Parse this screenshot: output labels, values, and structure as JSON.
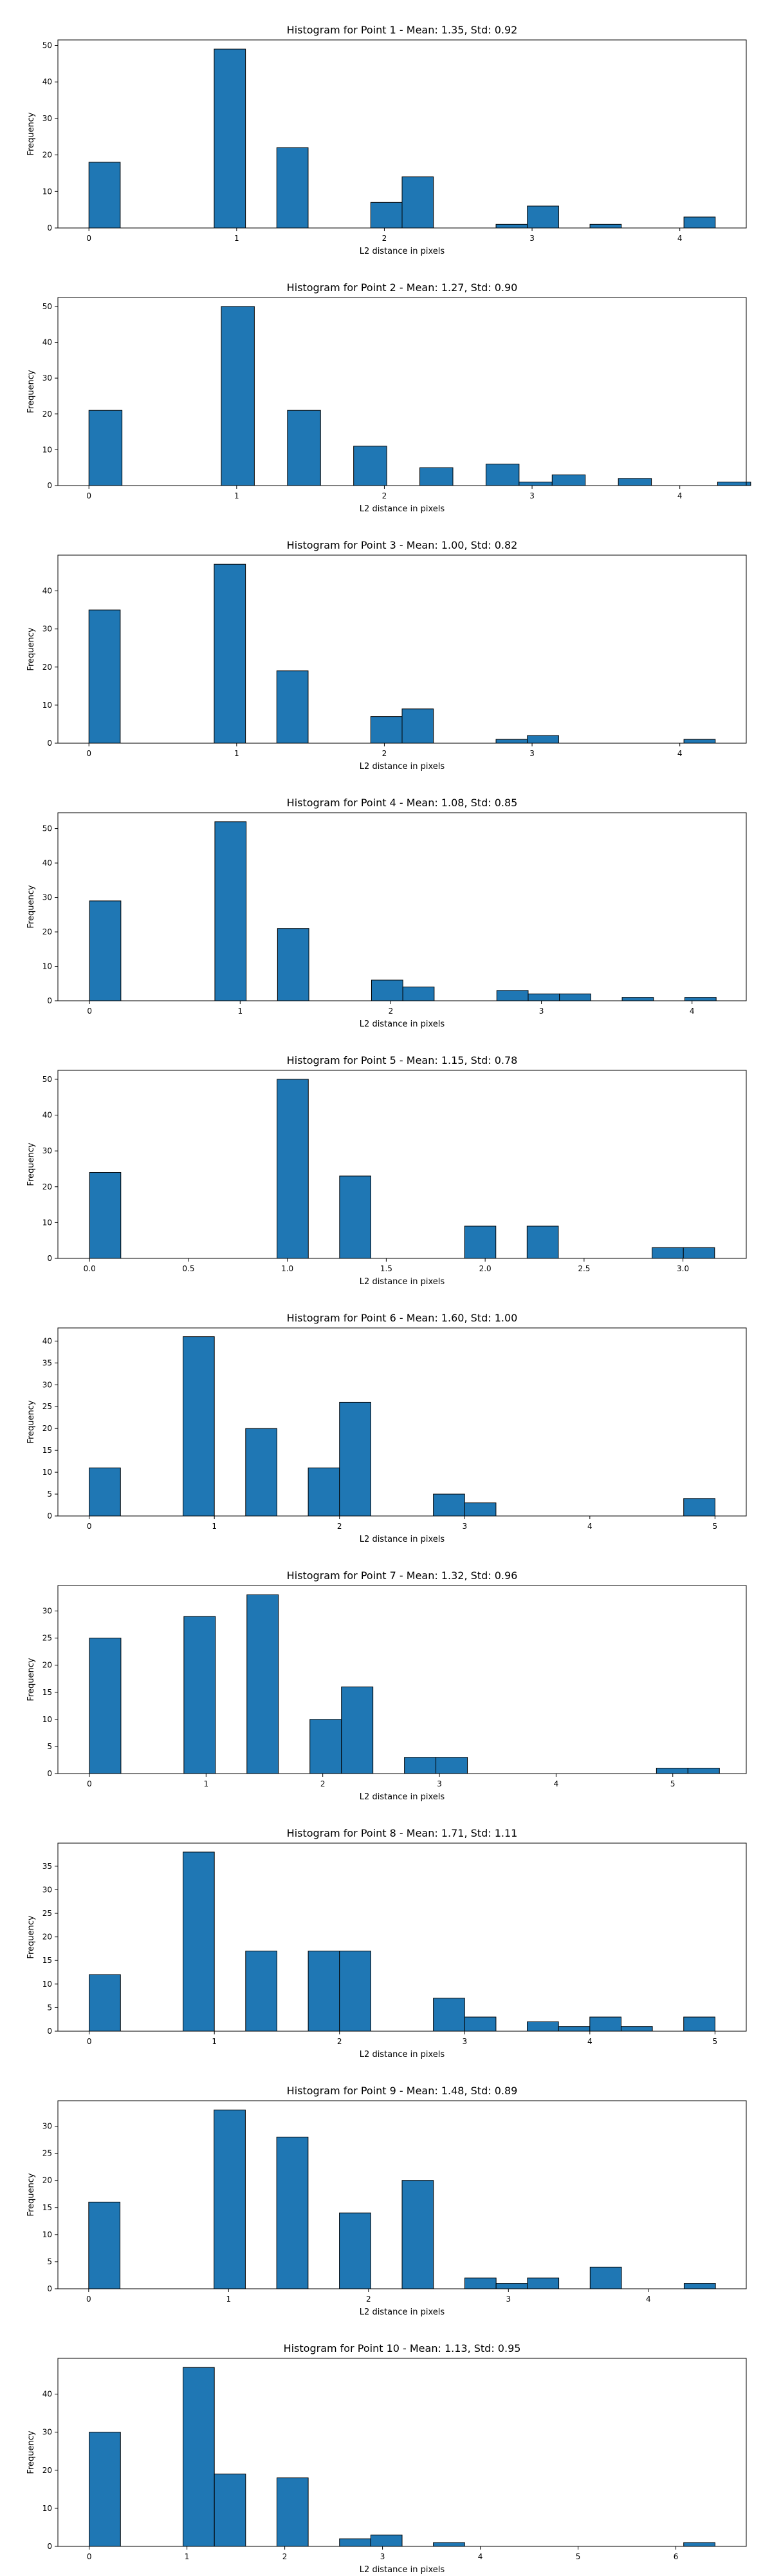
{
  "chart_data": [
    {
      "type": "bar",
      "title": "Histogram for Point 1 - Mean: 1.35, Std: 0.92",
      "xlabel": "L2 distance in pixels",
      "ylabel": "Frequency",
      "xlim": [
        -0.21,
        4.45
      ],
      "ylim": [
        0,
        51.5
      ],
      "xticks": [
        0,
        1,
        2,
        3,
        4
      ],
      "xtick_labels": [
        "0",
        "1",
        "2",
        "3",
        "4"
      ],
      "yticks": [
        0,
        10,
        20,
        30,
        40,
        50
      ],
      "bins": [
        {
          "x0": 0.0,
          "x1": 0.212,
          "value": 18
        },
        {
          "x0": 0.848,
          "x1": 1.06,
          "value": 49
        },
        {
          "x0": 1.272,
          "x1": 1.484,
          "value": 22
        },
        {
          "x0": 1.908,
          "x1": 2.12,
          "value": 7
        },
        {
          "x0": 2.12,
          "x1": 2.332,
          "value": 14
        },
        {
          "x0": 2.756,
          "x1": 2.968,
          "value": 1
        },
        {
          "x0": 2.968,
          "x1": 3.18,
          "value": 6
        },
        {
          "x0": 3.392,
          "x1": 3.604,
          "value": 1
        },
        {
          "x0": 4.028,
          "x1": 4.24,
          "value": 3
        }
      ]
    },
    {
      "type": "bar",
      "title": "Histogram for Point 2 - Mean: 1.27, Std: 0.90",
      "xlabel": "L2 distance in pixels",
      "ylabel": "Frequency",
      "xlim": [
        -0.21,
        4.45
      ],
      "ylim": [
        0,
        52.5
      ],
      "xticks": [
        0,
        1,
        2,
        3,
        4
      ],
      "xtick_labels": [
        "0",
        "1",
        "2",
        "3",
        "4"
      ],
      "yticks": [
        0,
        10,
        20,
        30,
        40,
        50
      ],
      "bins": [
        {
          "x0": 0.0,
          "x1": 0.224,
          "value": 21
        },
        {
          "x0": 0.896,
          "x1": 1.12,
          "value": 50
        },
        {
          "x0": 1.344,
          "x1": 1.568,
          "value": 21
        },
        {
          "x0": 1.792,
          "x1": 2.016,
          "value": 11
        },
        {
          "x0": 2.24,
          "x1": 2.464,
          "value": 5
        },
        {
          "x0": 2.688,
          "x1": 2.912,
          "value": 6
        },
        {
          "x0": 2.912,
          "x1": 3.136,
          "value": 1
        },
        {
          "x0": 3.136,
          "x1": 3.36,
          "value": 3
        },
        {
          "x0": 3.584,
          "x1": 3.808,
          "value": 2
        },
        {
          "x0": 4.256,
          "x1": 4.48,
          "value": 1
        }
      ]
    },
    {
      "type": "bar",
      "title": "Histogram for Point 3 - Mean: 1.00, Std: 0.82",
      "xlabel": "L2 distance in pixels",
      "ylabel": "Frequency",
      "xlim": [
        -0.21,
        4.45
      ],
      "ylim": [
        0,
        49.4
      ],
      "xticks": [
        0,
        1,
        2,
        3,
        4
      ],
      "xtick_labels": [
        "0",
        "1",
        "2",
        "3",
        "4"
      ],
      "yticks": [
        0,
        10,
        20,
        30,
        40
      ],
      "bins": [
        {
          "x0": 0.0,
          "x1": 0.212,
          "value": 35
        },
        {
          "x0": 0.848,
          "x1": 1.06,
          "value": 47
        },
        {
          "x0": 1.272,
          "x1": 1.484,
          "value": 19
        },
        {
          "x0": 1.908,
          "x1": 2.12,
          "value": 7
        },
        {
          "x0": 2.12,
          "x1": 2.332,
          "value": 9
        },
        {
          "x0": 2.756,
          "x1": 2.968,
          "value": 1
        },
        {
          "x0": 2.968,
          "x1": 3.18,
          "value": 2
        },
        {
          "x0": 4.028,
          "x1": 4.24,
          "value": 1
        }
      ]
    },
    {
      "type": "bar",
      "title": "Histogram for Point 4 - Mean: 1.08, Std: 0.85",
      "xlabel": "L2 distance in pixels",
      "ylabel": "Frequency",
      "xlim": [
        -0.21,
        4.36
      ],
      "ylim": [
        0,
        54.6
      ],
      "xticks": [
        0,
        1,
        2,
        3,
        4
      ],
      "xtick_labels": [
        "0",
        "1",
        "2",
        "3",
        "4"
      ],
      "yticks": [
        0,
        10,
        20,
        30,
        40,
        50
      ],
      "bins": [
        {
          "x0": 0.0,
          "x1": 0.208,
          "value": 29
        },
        {
          "x0": 0.832,
          "x1": 1.04,
          "value": 52
        },
        {
          "x0": 1.248,
          "x1": 1.456,
          "value": 21
        },
        {
          "x0": 1.872,
          "x1": 2.08,
          "value": 6
        },
        {
          "x0": 2.08,
          "x1": 2.288,
          "value": 4
        },
        {
          "x0": 2.704,
          "x1": 2.912,
          "value": 3
        },
        {
          "x0": 2.912,
          "x1": 3.12,
          "value": 2
        },
        {
          "x0": 3.12,
          "x1": 3.328,
          "value": 2
        },
        {
          "x0": 3.536,
          "x1": 3.744,
          "value": 1
        },
        {
          "x0": 3.952,
          "x1": 4.16,
          "value": 1
        }
      ]
    },
    {
      "type": "bar",
      "title": "Histogram for Point 5 - Mean: 1.15, Std: 0.78",
      "xlabel": "L2 distance in pixels",
      "ylabel": "Frequency",
      "xlim": [
        -0.16,
        3.32
      ],
      "ylim": [
        0,
        52.5
      ],
      "xticks": [
        0,
        0.5,
        1,
        1.5,
        2,
        2.5,
        3
      ],
      "xtick_labels": [
        "0.0",
        "0.5",
        "1.0",
        "1.5",
        "2.0",
        "2.5",
        "3.0"
      ],
      "yticks": [
        0,
        10,
        20,
        30,
        40,
        50
      ],
      "bins": [
        {
          "x0": 0.0,
          "x1": 0.158,
          "value": 24
        },
        {
          "x0": 0.948,
          "x1": 1.106,
          "value": 50
        },
        {
          "x0": 1.264,
          "x1": 1.422,
          "value": 23
        },
        {
          "x0": 1.896,
          "x1": 2.054,
          "value": 9
        },
        {
          "x0": 2.212,
          "x1": 2.37,
          "value": 9
        },
        {
          "x0": 2.844,
          "x1": 3.002,
          "value": 3
        },
        {
          "x0": 3.002,
          "x1": 3.16,
          "value": 3
        }
      ]
    },
    {
      "type": "bar",
      "title": "Histogram for Point 6 - Mean: 1.60, Std: 1.00",
      "xlabel": "L2 distance in pixels",
      "ylabel": "Frequency",
      "xlim": [
        -0.25,
        5.25
      ],
      "ylim": [
        0,
        43.0
      ],
      "xticks": [
        0,
        1,
        2,
        3,
        4,
        5
      ],
      "xtick_labels": [
        "0",
        "1",
        "2",
        "3",
        "4",
        "5"
      ],
      "yticks": [
        0,
        5,
        10,
        15,
        20,
        25,
        30,
        35,
        40
      ],
      "bins": [
        {
          "x0": 0.0,
          "x1": 0.25,
          "value": 11
        },
        {
          "x0": 0.75,
          "x1": 1.0,
          "value": 41
        },
        {
          "x0": 1.25,
          "x1": 1.5,
          "value": 20
        },
        {
          "x0": 1.75,
          "x1": 2.0,
          "value": 11
        },
        {
          "x0": 2.0,
          "x1": 2.25,
          "value": 26
        },
        {
          "x0": 2.75,
          "x1": 3.0,
          "value": 5
        },
        {
          "x0": 3.0,
          "x1": 3.25,
          "value": 3
        },
        {
          "x0": 4.75,
          "x1": 5.0,
          "value": 4
        }
      ]
    },
    {
      "type": "bar",
      "title": "Histogram for Point 7 - Mean: 1.32, Std: 0.96",
      "xlabel": "L2 distance in pixels",
      "ylabel": "Frequency",
      "xlim": [
        -0.27,
        5.63
      ],
      "ylim": [
        0,
        34.7
      ],
      "xticks": [
        0,
        1,
        2,
        3,
        4,
        5
      ],
      "xtick_labels": [
        "0",
        "1",
        "2",
        "3",
        "4",
        "5"
      ],
      "yticks": [
        0,
        5,
        10,
        15,
        20,
        25,
        30
      ],
      "bins": [
        {
          "x0": 0.0,
          "x1": 0.27,
          "value": 25
        },
        {
          "x0": 0.81,
          "x1": 1.08,
          "value": 29
        },
        {
          "x0": 1.35,
          "x1": 1.62,
          "value": 33
        },
        {
          "x0": 1.89,
          "x1": 2.16,
          "value": 10
        },
        {
          "x0": 2.16,
          "x1": 2.43,
          "value": 16
        },
        {
          "x0": 2.7,
          "x1": 2.97,
          "value": 3
        },
        {
          "x0": 2.97,
          "x1": 3.24,
          "value": 3
        },
        {
          "x0": 4.86,
          "x1": 5.13,
          "value": 1
        },
        {
          "x0": 5.13,
          "x1": 5.4,
          "value": 1
        }
      ]
    },
    {
      "type": "bar",
      "title": "Histogram for Point 8 - Mean: 1.71, Std: 1.11",
      "xlabel": "L2 distance in pixels",
      "ylabel": "Frequency",
      "xlim": [
        -0.25,
        5.25
      ],
      "ylim": [
        0,
        39.9
      ],
      "xticks": [
        0,
        1,
        2,
        3,
        4,
        5
      ],
      "xtick_labels": [
        "0",
        "1",
        "2",
        "3",
        "4",
        "5"
      ],
      "yticks": [
        0,
        5,
        10,
        15,
        20,
        25,
        30,
        35
      ],
      "bins": [
        {
          "x0": 0.0,
          "x1": 0.25,
          "value": 12
        },
        {
          "x0": 0.75,
          "x1": 1.0,
          "value": 38
        },
        {
          "x0": 1.25,
          "x1": 1.5,
          "value": 17
        },
        {
          "x0": 1.75,
          "x1": 2.0,
          "value": 17
        },
        {
          "x0": 2.0,
          "x1": 2.25,
          "value": 17
        },
        {
          "x0": 2.75,
          "x1": 3.0,
          "value": 7
        },
        {
          "x0": 3.0,
          "x1": 3.25,
          "value": 3
        },
        {
          "x0": 3.5,
          "x1": 3.75,
          "value": 2
        },
        {
          "x0": 3.75,
          "x1": 4.0,
          "value": 1
        },
        {
          "x0": 4.0,
          "x1": 4.25,
          "value": 3
        },
        {
          "x0": 4.25,
          "x1": 4.5,
          "value": 1
        },
        {
          "x0": 4.75,
          "x1": 5.0,
          "value": 3
        }
      ]
    },
    {
      "type": "bar",
      "title": "Histogram for Point 9 - Mean: 1.48, Std: 0.89",
      "xlabel": "L2 distance in pixels",
      "ylabel": "Frequency",
      "xlim": [
        -0.22,
        4.7
      ],
      "ylim": [
        0,
        34.7
      ],
      "xticks": [
        0,
        1,
        2,
        3,
        4
      ],
      "xtick_labels": [
        "0",
        "1",
        "2",
        "3",
        "4"
      ],
      "yticks": [
        0,
        5,
        10,
        15,
        20,
        25,
        30
      ],
      "bins": [
        {
          "x0": 0.0,
          "x1": 0.224,
          "value": 16
        },
        {
          "x0": 0.896,
          "x1": 1.12,
          "value": 33
        },
        {
          "x0": 1.344,
          "x1": 1.568,
          "value": 28
        },
        {
          "x0": 1.792,
          "x1": 2.016,
          "value": 14
        },
        {
          "x0": 2.24,
          "x1": 2.464,
          "value": 20
        },
        {
          "x0": 2.688,
          "x1": 2.912,
          "value": 2
        },
        {
          "x0": 2.912,
          "x1": 3.136,
          "value": 1
        },
        {
          "x0": 3.136,
          "x1": 3.36,
          "value": 2
        },
        {
          "x0": 3.584,
          "x1": 3.808,
          "value": 4
        },
        {
          "x0": 4.256,
          "x1": 4.48,
          "value": 1
        }
      ]
    },
    {
      "type": "bar",
      "title": "Histogram for Point 10 - Mean: 1.13, Std: 0.95",
      "xlabel": "L2 distance in pixels",
      "ylabel": "Frequency",
      "xlim": [
        -0.32,
        6.72
      ],
      "ylim": [
        0,
        49.4
      ],
      "xticks": [
        0,
        1,
        2,
        3,
        4,
        5,
        6
      ],
      "xtick_labels": [
        "0",
        "1",
        "2",
        "3",
        "4",
        "5",
        "6"
      ],
      "yticks": [
        0,
        10,
        20,
        30,
        40
      ],
      "bins": [
        {
          "x0": 0.0,
          "x1": 0.32,
          "value": 30
        },
        {
          "x0": 0.96,
          "x1": 1.28,
          "value": 47
        },
        {
          "x0": 1.28,
          "x1": 1.6,
          "value": 19
        },
        {
          "x0": 1.92,
          "x1": 2.24,
          "value": 18
        },
        {
          "x0": 2.56,
          "x1": 2.88,
          "value": 2
        },
        {
          "x0": 2.88,
          "x1": 3.2,
          "value": 3
        },
        {
          "x0": 3.52,
          "x1": 3.84,
          "value": 1
        },
        {
          "x0": 6.08,
          "x1": 6.4,
          "value": 1
        }
      ]
    }
  ]
}
